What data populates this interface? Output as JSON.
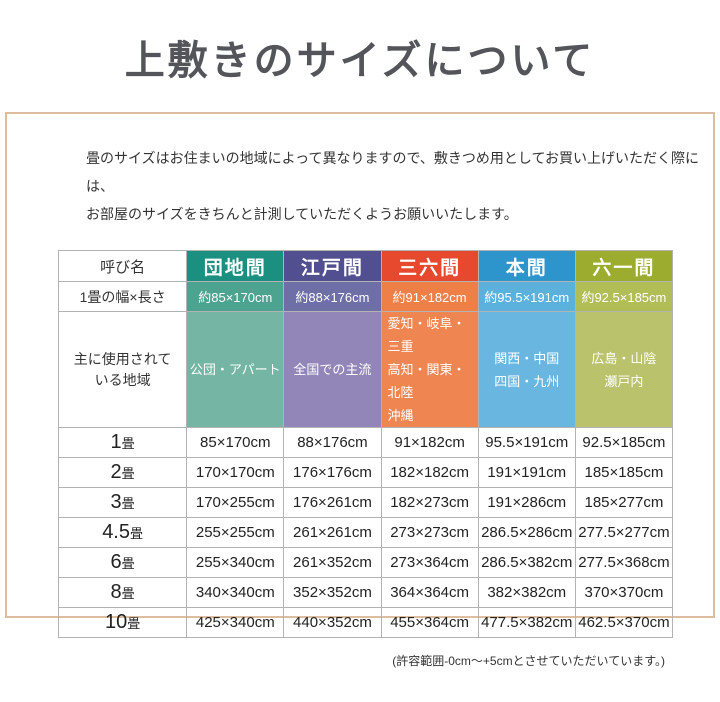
{
  "page": {
    "title": "上敷きのサイズについて",
    "intro_line1": "畳のサイズはお住まいの地域によって異なりますので、敷きつめ用としてお買い上げいただく際には、",
    "intro_line2": "お部屋のサイズをきちんと計測していただくようお願いいたします。",
    "footnote": "(許容範囲-0cm～+5cmとさせていただいています。)"
  },
  "colors": {
    "frame_border": "#dcbd9d",
    "title_text": "#54555a",
    "grid_border": "#b3b3b3"
  },
  "table": {
    "corner_header": "呼び名",
    "size_row_label": "1畳の幅×長さ",
    "region_row_label": "主に使用されて\nいる地域",
    "unit": "畳",
    "columns": [
      {
        "label": "団地間",
        "size": "約85×170cm",
        "region": "公団・アパート",
        "header_color": "#1b9080",
        "size_color": "#4ba390",
        "region_color": "#74b6a3"
      },
      {
        "label": "江戸間",
        "size": "約88×176cm",
        "region": "全国での主流",
        "header_color": "#514f90",
        "size_color": "#6f6fa7",
        "region_color": "#9285b7"
      },
      {
        "label": "三六間",
        "size": "約91×182cm",
        "region": "愛知・岐阜・三重\n高知・関東・北陸\n沖縄",
        "header_color": "#e6492d",
        "size_color": "#ee7f47",
        "region_color": "#ef8551"
      },
      {
        "label": "本間",
        "size": "約95.5×191cm",
        "region": "関西・中国\n四国・九州",
        "header_color": "#2d95cc",
        "size_color": "#5cb1dc",
        "region_color": "#69b7e0"
      },
      {
        "label": "六一間",
        "size": "約92.5×185cm",
        "region": "広島・山陰\n瀬戸内",
        "header_color": "#9cac2e",
        "size_color": "#b1bd55",
        "region_color": "#bac26c"
      }
    ],
    "rows": [
      {
        "label": "1",
        "values": [
          "85×170cm",
          "88×176cm",
          "91×182cm",
          "95.5×191cm",
          "92.5×185cm"
        ]
      },
      {
        "label": "2",
        "values": [
          "170×170cm",
          "176×176cm",
          "182×182cm",
          "191×191cm",
          "185×185cm"
        ]
      },
      {
        "label": "3",
        "values": [
          "170×255cm",
          "176×261cm",
          "182×273cm",
          "191×286cm",
          "185×277cm"
        ]
      },
      {
        "label": "4.5",
        "values": [
          "255×255cm",
          "261×261cm",
          "273×273cm",
          "286.5×286cm",
          "277.5×277cm"
        ]
      },
      {
        "label": "6",
        "values": [
          "255×340cm",
          "261×352cm",
          "273×364cm",
          "286.5×382cm",
          "277.5×368cm"
        ]
      },
      {
        "label": "8",
        "values": [
          "340×340cm",
          "352×352cm",
          "364×364cm",
          "382×382cm",
          "370×370cm"
        ]
      },
      {
        "label": "10",
        "values": [
          "425×340cm",
          "440×352cm",
          "455×364cm",
          "477.5×382cm",
          "462.5×370cm"
        ]
      }
    ]
  }
}
